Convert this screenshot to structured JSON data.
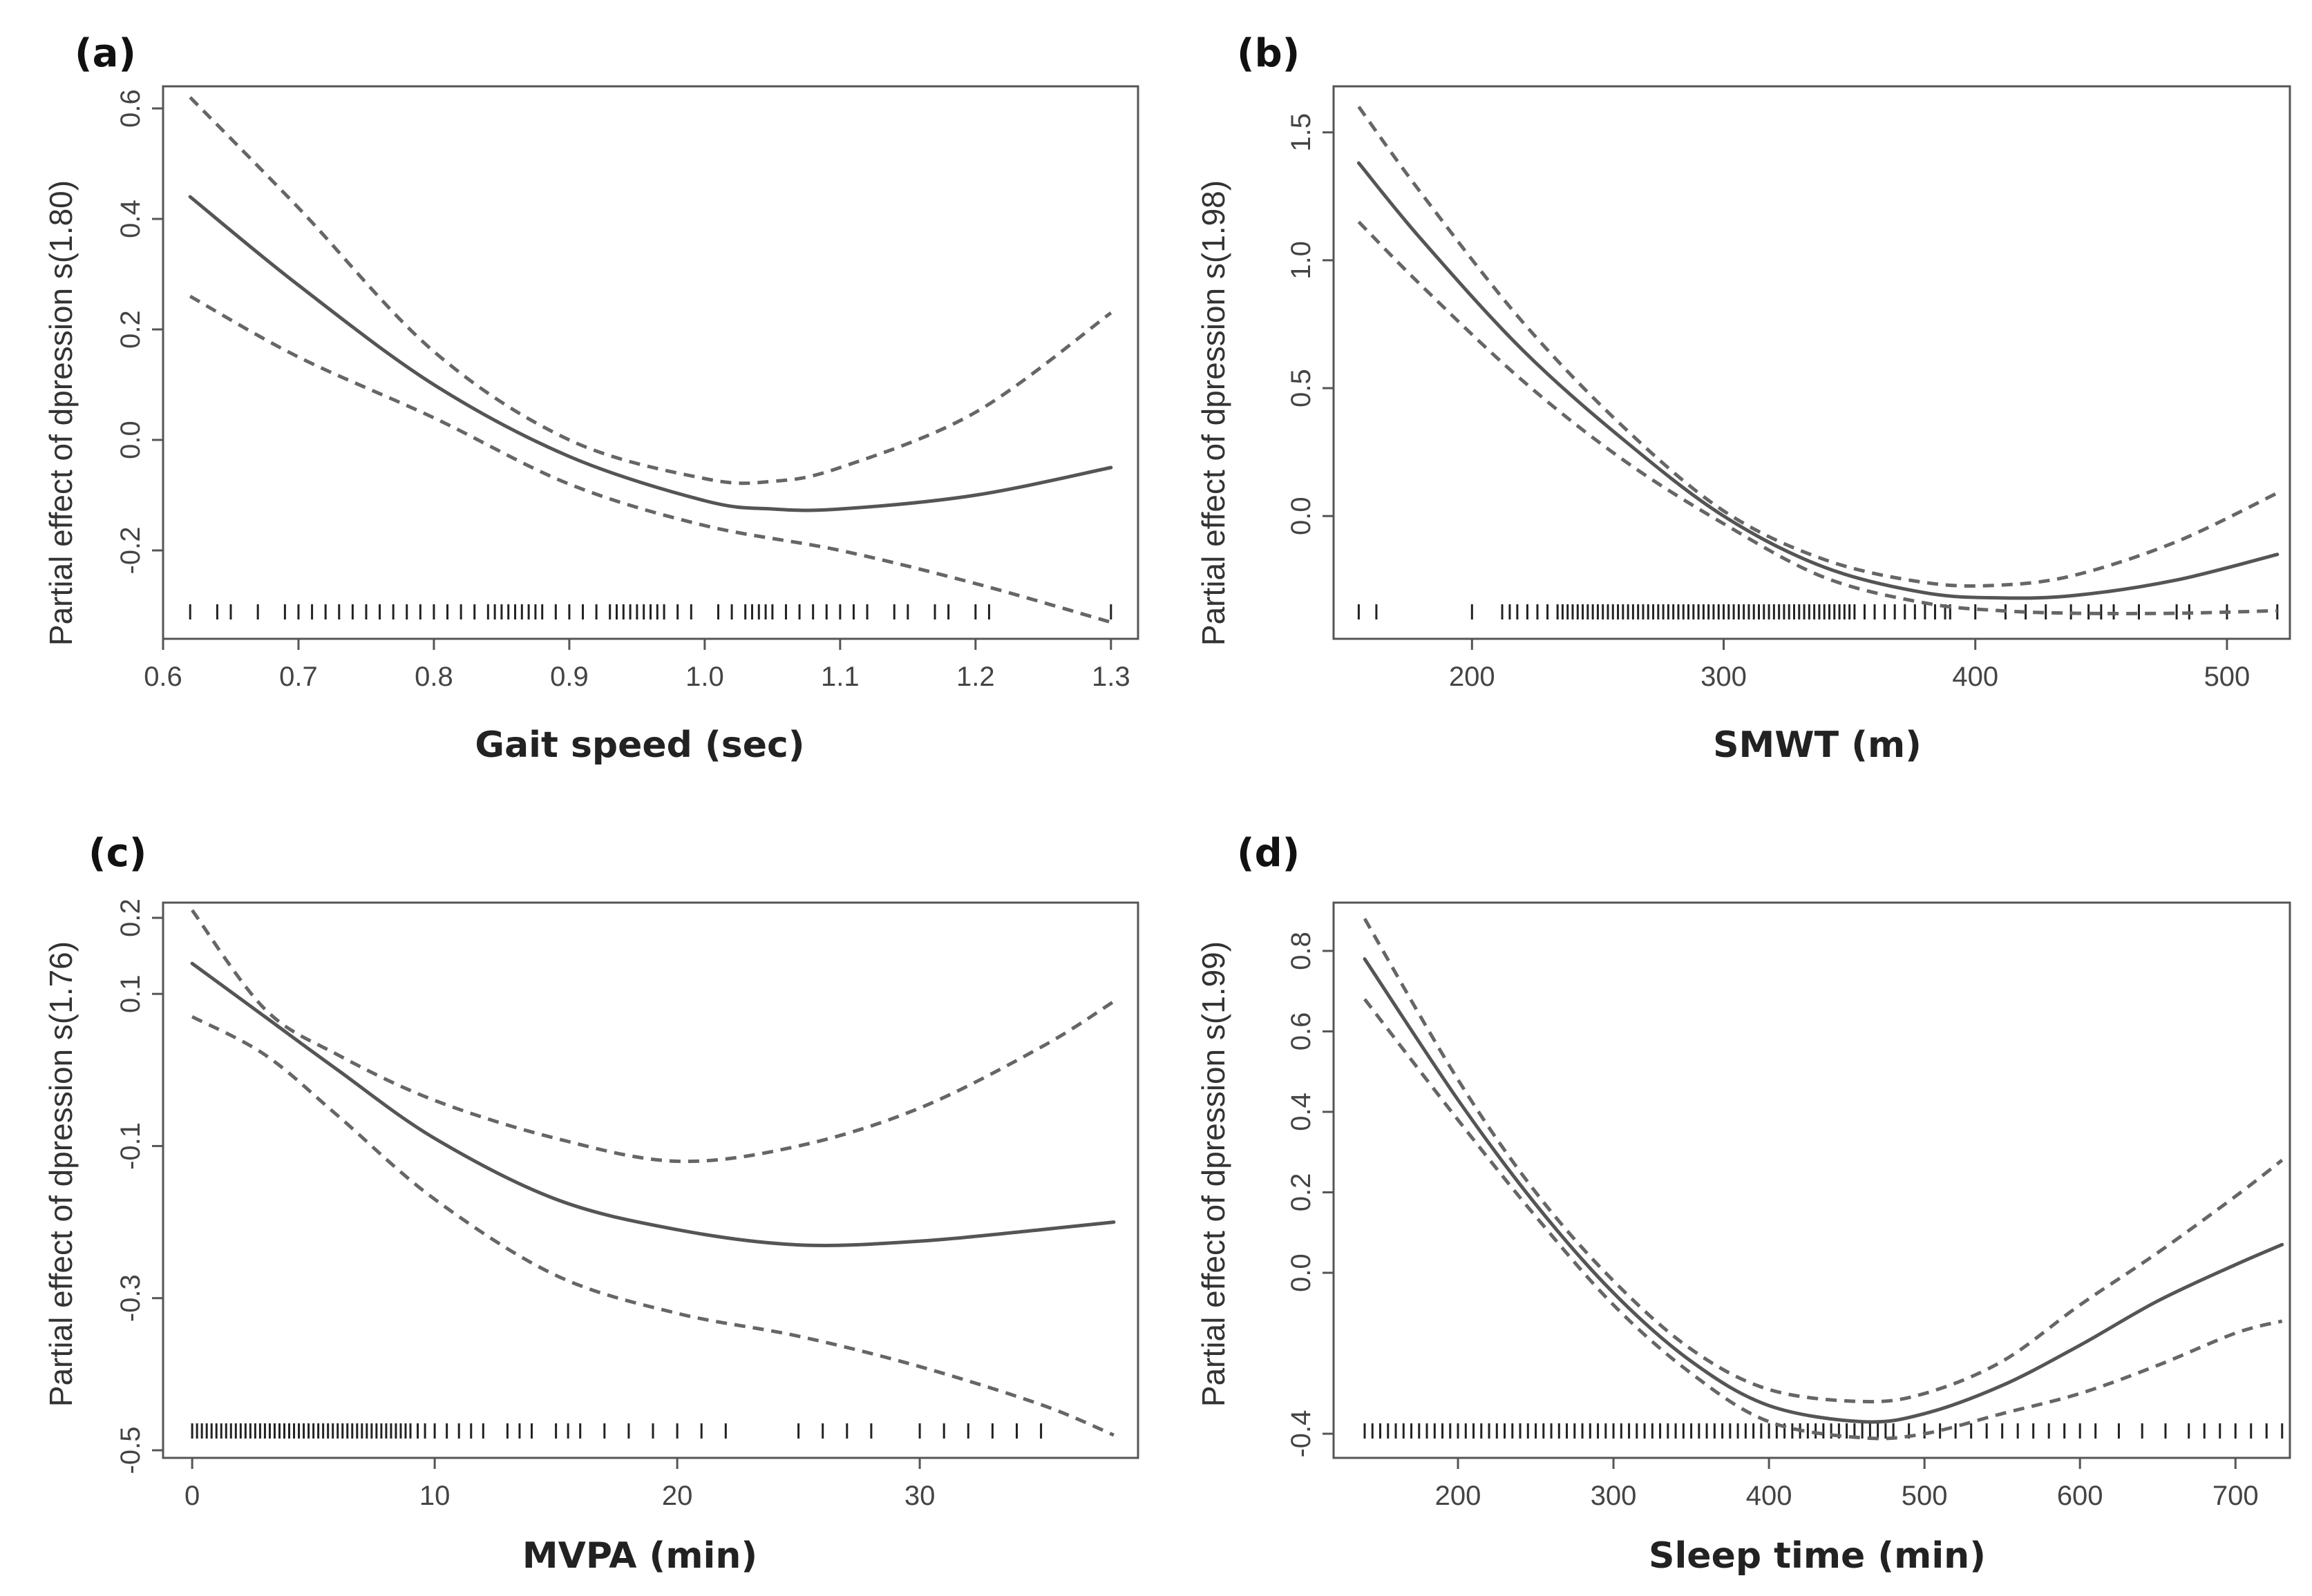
{
  "chart_data": [
    {
      "panel": "(a)",
      "type": "line",
      "xlabel": "Gait speed (sec)",
      "ylabel": "Partial effect of dpression s(1.80)",
      "xlim": [
        0.6,
        1.32
      ],
      "ylim": [
        -0.36,
        0.64
      ],
      "xticks": [
        0.6,
        0.7,
        0.8,
        0.9,
        1.0,
        1.1,
        1.2,
        1.3
      ],
      "xtick_labels": [
        "0.6",
        "0.7",
        "0.8",
        "0.9",
        "1.0",
        "1.1",
        "1.2",
        "1.3"
      ],
      "yticks": [
        -0.2,
        0.0,
        0.2,
        0.4,
        0.6
      ],
      "ytick_labels": [
        "-0.2",
        "0.0",
        "0.2",
        "0.4",
        "0.6"
      ],
      "grid": false,
      "legend": "none",
      "series": [
        {
          "role": "fit",
          "line_style": "solid",
          "x": [
            0.62,
            0.7,
            0.8,
            0.9,
            1.0,
            1.05,
            1.1,
            1.2,
            1.3
          ],
          "y": [
            0.44,
            0.28,
            0.1,
            -0.03,
            -0.11,
            -0.125,
            -0.125,
            -0.1,
            -0.05
          ]
        },
        {
          "role": "upper",
          "line_style": "dashed",
          "x": [
            0.62,
            0.7,
            0.8,
            0.9,
            1.0,
            1.05,
            1.1,
            1.2,
            1.3
          ],
          "y": [
            0.62,
            0.42,
            0.16,
            0.0,
            -0.07,
            -0.075,
            -0.05,
            0.05,
            0.23
          ]
        },
        {
          "role": "lower",
          "line_style": "dashed",
          "x": [
            0.62,
            0.7,
            0.8,
            0.9,
            1.0,
            1.1,
            1.2,
            1.3
          ],
          "y": [
            0.26,
            0.15,
            0.04,
            -0.08,
            -0.155,
            -0.2,
            -0.26,
            -0.33
          ]
        }
      ],
      "rug": [
        0.62,
        0.64,
        0.65,
        0.67,
        0.69,
        0.7,
        0.71,
        0.72,
        0.73,
        0.74,
        0.75,
        0.76,
        0.77,
        0.78,
        0.79,
        0.8,
        0.81,
        0.82,
        0.83,
        0.84,
        0.845,
        0.85,
        0.855,
        0.86,
        0.865,
        0.87,
        0.875,
        0.88,
        0.89,
        0.9,
        0.91,
        0.92,
        0.93,
        0.935,
        0.94,
        0.945,
        0.95,
        0.955,
        0.96,
        0.965,
        0.97,
        0.98,
        0.99,
        1.01,
        1.02,
        1.03,
        1.035,
        1.04,
        1.045,
        1.05,
        1.06,
        1.07,
        1.08,
        1.09,
        1.1,
        1.11,
        1.12,
        1.14,
        1.15,
        1.17,
        1.18,
        1.2,
        1.21,
        1.3
      ]
    },
    {
      "panel": "(b)",
      "type": "line",
      "xlabel": "SMWT (m)",
      "ylabel": "Partial effect of dpression s(1.98)",
      "xlim": [
        145,
        525
      ],
      "ylim": [
        -0.48,
        1.68
      ],
      "xticks": [
        200,
        300,
        400,
        500
      ],
      "xtick_labels": [
        "200",
        "300",
        "400",
        "500"
      ],
      "yticks": [
        0.0,
        0.5,
        1.0,
        1.5
      ],
      "ytick_labels": [
        "0.0",
        "0.5",
        "1.0",
        "1.5"
      ],
      "grid": false,
      "legend": "none",
      "series": [
        {
          "role": "fit",
          "line_style": "solid",
          "x": [
            155,
            180,
            220,
            260,
            300,
            340,
            380,
            410,
            440,
            480,
            520
          ],
          "y": [
            1.38,
            1.08,
            0.65,
            0.3,
            0.0,
            -0.2,
            -0.3,
            -0.32,
            -0.31,
            -0.25,
            -0.15
          ]
        },
        {
          "role": "upper",
          "line_style": "dashed",
          "x": [
            155,
            180,
            220,
            260,
            300,
            340,
            380,
            410,
            440,
            480,
            520
          ],
          "y": [
            1.6,
            1.26,
            0.76,
            0.35,
            0.02,
            -0.17,
            -0.26,
            -0.27,
            -0.23,
            -0.1,
            0.09
          ]
        },
        {
          "role": "lower",
          "line_style": "dashed",
          "x": [
            155,
            180,
            220,
            260,
            300,
            340,
            380,
            410,
            440,
            480,
            520
          ],
          "y": [
            1.15,
            0.9,
            0.53,
            0.22,
            -0.03,
            -0.24,
            -0.34,
            -0.37,
            -0.38,
            -0.38,
            -0.37
          ]
        }
      ],
      "rug": [
        155,
        162,
        200,
        212,
        215,
        218,
        222,
        226,
        230,
        234,
        236,
        238,
        240,
        242,
        244,
        246,
        248,
        250,
        252,
        254,
        256,
        258,
        260,
        262,
        264,
        266,
        268,
        270,
        272,
        274,
        276,
        278,
        280,
        282,
        284,
        286,
        288,
        290,
        292,
        294,
        296,
        298,
        300,
        302,
        304,
        306,
        308,
        310,
        312,
        314,
        316,
        318,
        320,
        322,
        324,
        326,
        328,
        330,
        332,
        334,
        336,
        338,
        340,
        342,
        344,
        346,
        348,
        350,
        352,
        356,
        360,
        364,
        368,
        372,
        376,
        380,
        384,
        388,
        390,
        400,
        412,
        420,
        428,
        438,
        445,
        450,
        455,
        465,
        480,
        485,
        500,
        520
      ]
    },
    {
      "panel": "(c)",
      "type": "line",
      "xlabel": "MVPA (min)",
      "ylabel": "Partial effect of dpression s(1.76)",
      "xlim": [
        -1.2,
        39
      ],
      "ylim": [
        -0.51,
        0.22
      ],
      "xticks": [
        0,
        10,
        20,
        30
      ],
      "xtick_labels": [
        "0",
        "10",
        "20",
        "30"
      ],
      "yticks": [
        -0.5,
        -0.3,
        -0.1,
        0.1,
        0.2
      ],
      "ytick_labels": [
        "-0.5",
        "-0.3",
        "-0.1",
        "0.1",
        "0.2"
      ],
      "grid": false,
      "legend": "none",
      "series": [
        {
          "role": "fit",
          "line_style": "solid",
          "x": [
            0,
            3,
            6,
            10,
            15,
            20,
            25,
            30,
            35,
            38
          ],
          "y": [
            0.14,
            0.07,
            0.0,
            -0.09,
            -0.17,
            -0.21,
            -0.23,
            -0.225,
            -0.21,
            -0.2
          ]
        },
        {
          "role": "upper",
          "line_style": "dashed",
          "x": [
            0,
            3,
            6,
            10,
            15,
            20,
            25,
            30,
            35,
            38
          ],
          "y": [
            0.21,
            0.08,
            0.02,
            -0.04,
            -0.09,
            -0.12,
            -0.1,
            -0.05,
            0.03,
            0.09
          ]
        },
        {
          "role": "lower",
          "line_style": "dashed",
          "x": [
            0,
            3,
            6,
            10,
            15,
            20,
            25,
            30,
            35,
            38
          ],
          "y": [
            0.07,
            0.02,
            -0.06,
            -0.17,
            -0.27,
            -0.32,
            -0.35,
            -0.39,
            -0.44,
            -0.48
          ]
        }
      ],
      "rug": [
        0,
        0.2,
        0.4,
        0.6,
        0.8,
        1,
        1.2,
        1.4,
        1.6,
        1.8,
        2,
        2.2,
        2.4,
        2.6,
        2.8,
        3,
        3.2,
        3.4,
        3.6,
        3.8,
        4,
        4.2,
        4.4,
        4.6,
        4.8,
        5,
        5.2,
        5.4,
        5.6,
        5.8,
        6,
        6.2,
        6.4,
        6.6,
        6.8,
        7,
        7.2,
        7.4,
        7.6,
        7.8,
        8,
        8.2,
        8.4,
        8.6,
        8.8,
        9,
        9.3,
        9.6,
        10,
        10.5,
        11,
        11.5,
        12,
        13,
        13.5,
        14,
        15,
        15.5,
        16,
        17,
        18,
        19,
        20,
        21,
        22,
        25,
        26,
        27,
        28,
        30,
        31,
        32,
        33,
        34,
        35
      ]
    },
    {
      "panel": "(d)",
      "type": "line",
      "xlabel": "Sleep time (min)",
      "ylabel": "Partial effect of dpression s(1.99)",
      "xlim": [
        120,
        735
      ],
      "ylim": [
        -0.46,
        0.92
      ],
      "xticks": [
        200,
        300,
        400,
        500,
        600,
        700
      ],
      "xtick_labels": [
        "200",
        "300",
        "400",
        "500",
        "600",
        "700"
      ],
      "yticks": [
        -0.4,
        0.0,
        0.2,
        0.4,
        0.6,
        0.8
      ],
      "ytick_labels": [
        "-0.4",
        "0.0",
        "0.2",
        "0.4",
        "0.6",
        "0.8"
      ],
      "grid": false,
      "legend": "none",
      "series": [
        {
          "role": "fit",
          "line_style": "solid",
          "x": [
            140,
            200,
            250,
            300,
            350,
            400,
            460,
            500,
            550,
            600,
            650,
            700,
            730
          ],
          "y": [
            0.78,
            0.43,
            0.17,
            -0.05,
            -0.22,
            -0.33,
            -0.37,
            -0.35,
            -0.28,
            -0.18,
            -0.07,
            0.02,
            0.07
          ]
        },
        {
          "role": "upper",
          "line_style": "dashed",
          "x": [
            140,
            200,
            250,
            300,
            350,
            400,
            460,
            500,
            550,
            600,
            650,
            700,
            730
          ],
          "y": [
            0.88,
            0.48,
            0.2,
            -0.02,
            -0.19,
            -0.29,
            -0.32,
            -0.3,
            -0.22,
            -0.08,
            0.05,
            0.19,
            0.28
          ]
        },
        {
          "role": "lower",
          "line_style": "dashed",
          "x": [
            140,
            200,
            250,
            300,
            350,
            400,
            460,
            500,
            550,
            600,
            650,
            700,
            730
          ],
          "y": [
            0.68,
            0.38,
            0.14,
            -0.08,
            -0.25,
            -0.37,
            -0.41,
            -0.4,
            -0.35,
            -0.3,
            -0.23,
            -0.15,
            -0.12
          ]
        }
      ],
      "rug": [
        140,
        145,
        150,
        155,
        160,
        165,
        170,
        175,
        180,
        185,
        190,
        195,
        200,
        205,
        210,
        215,
        220,
        225,
        230,
        235,
        240,
        245,
        250,
        255,
        260,
        265,
        270,
        275,
        280,
        285,
        290,
        295,
        300,
        305,
        310,
        315,
        320,
        325,
        330,
        335,
        340,
        345,
        350,
        355,
        360,
        365,
        370,
        375,
        380,
        385,
        390,
        395,
        400,
        405,
        410,
        415,
        420,
        425,
        430,
        435,
        440,
        445,
        450,
        455,
        460,
        465,
        470,
        475,
        480,
        490,
        500,
        510,
        520,
        530,
        540,
        550,
        560,
        570,
        580,
        590,
        600,
        610,
        625,
        640,
        655,
        670,
        680,
        690,
        700,
        710,
        720,
        730
      ]
    }
  ]
}
